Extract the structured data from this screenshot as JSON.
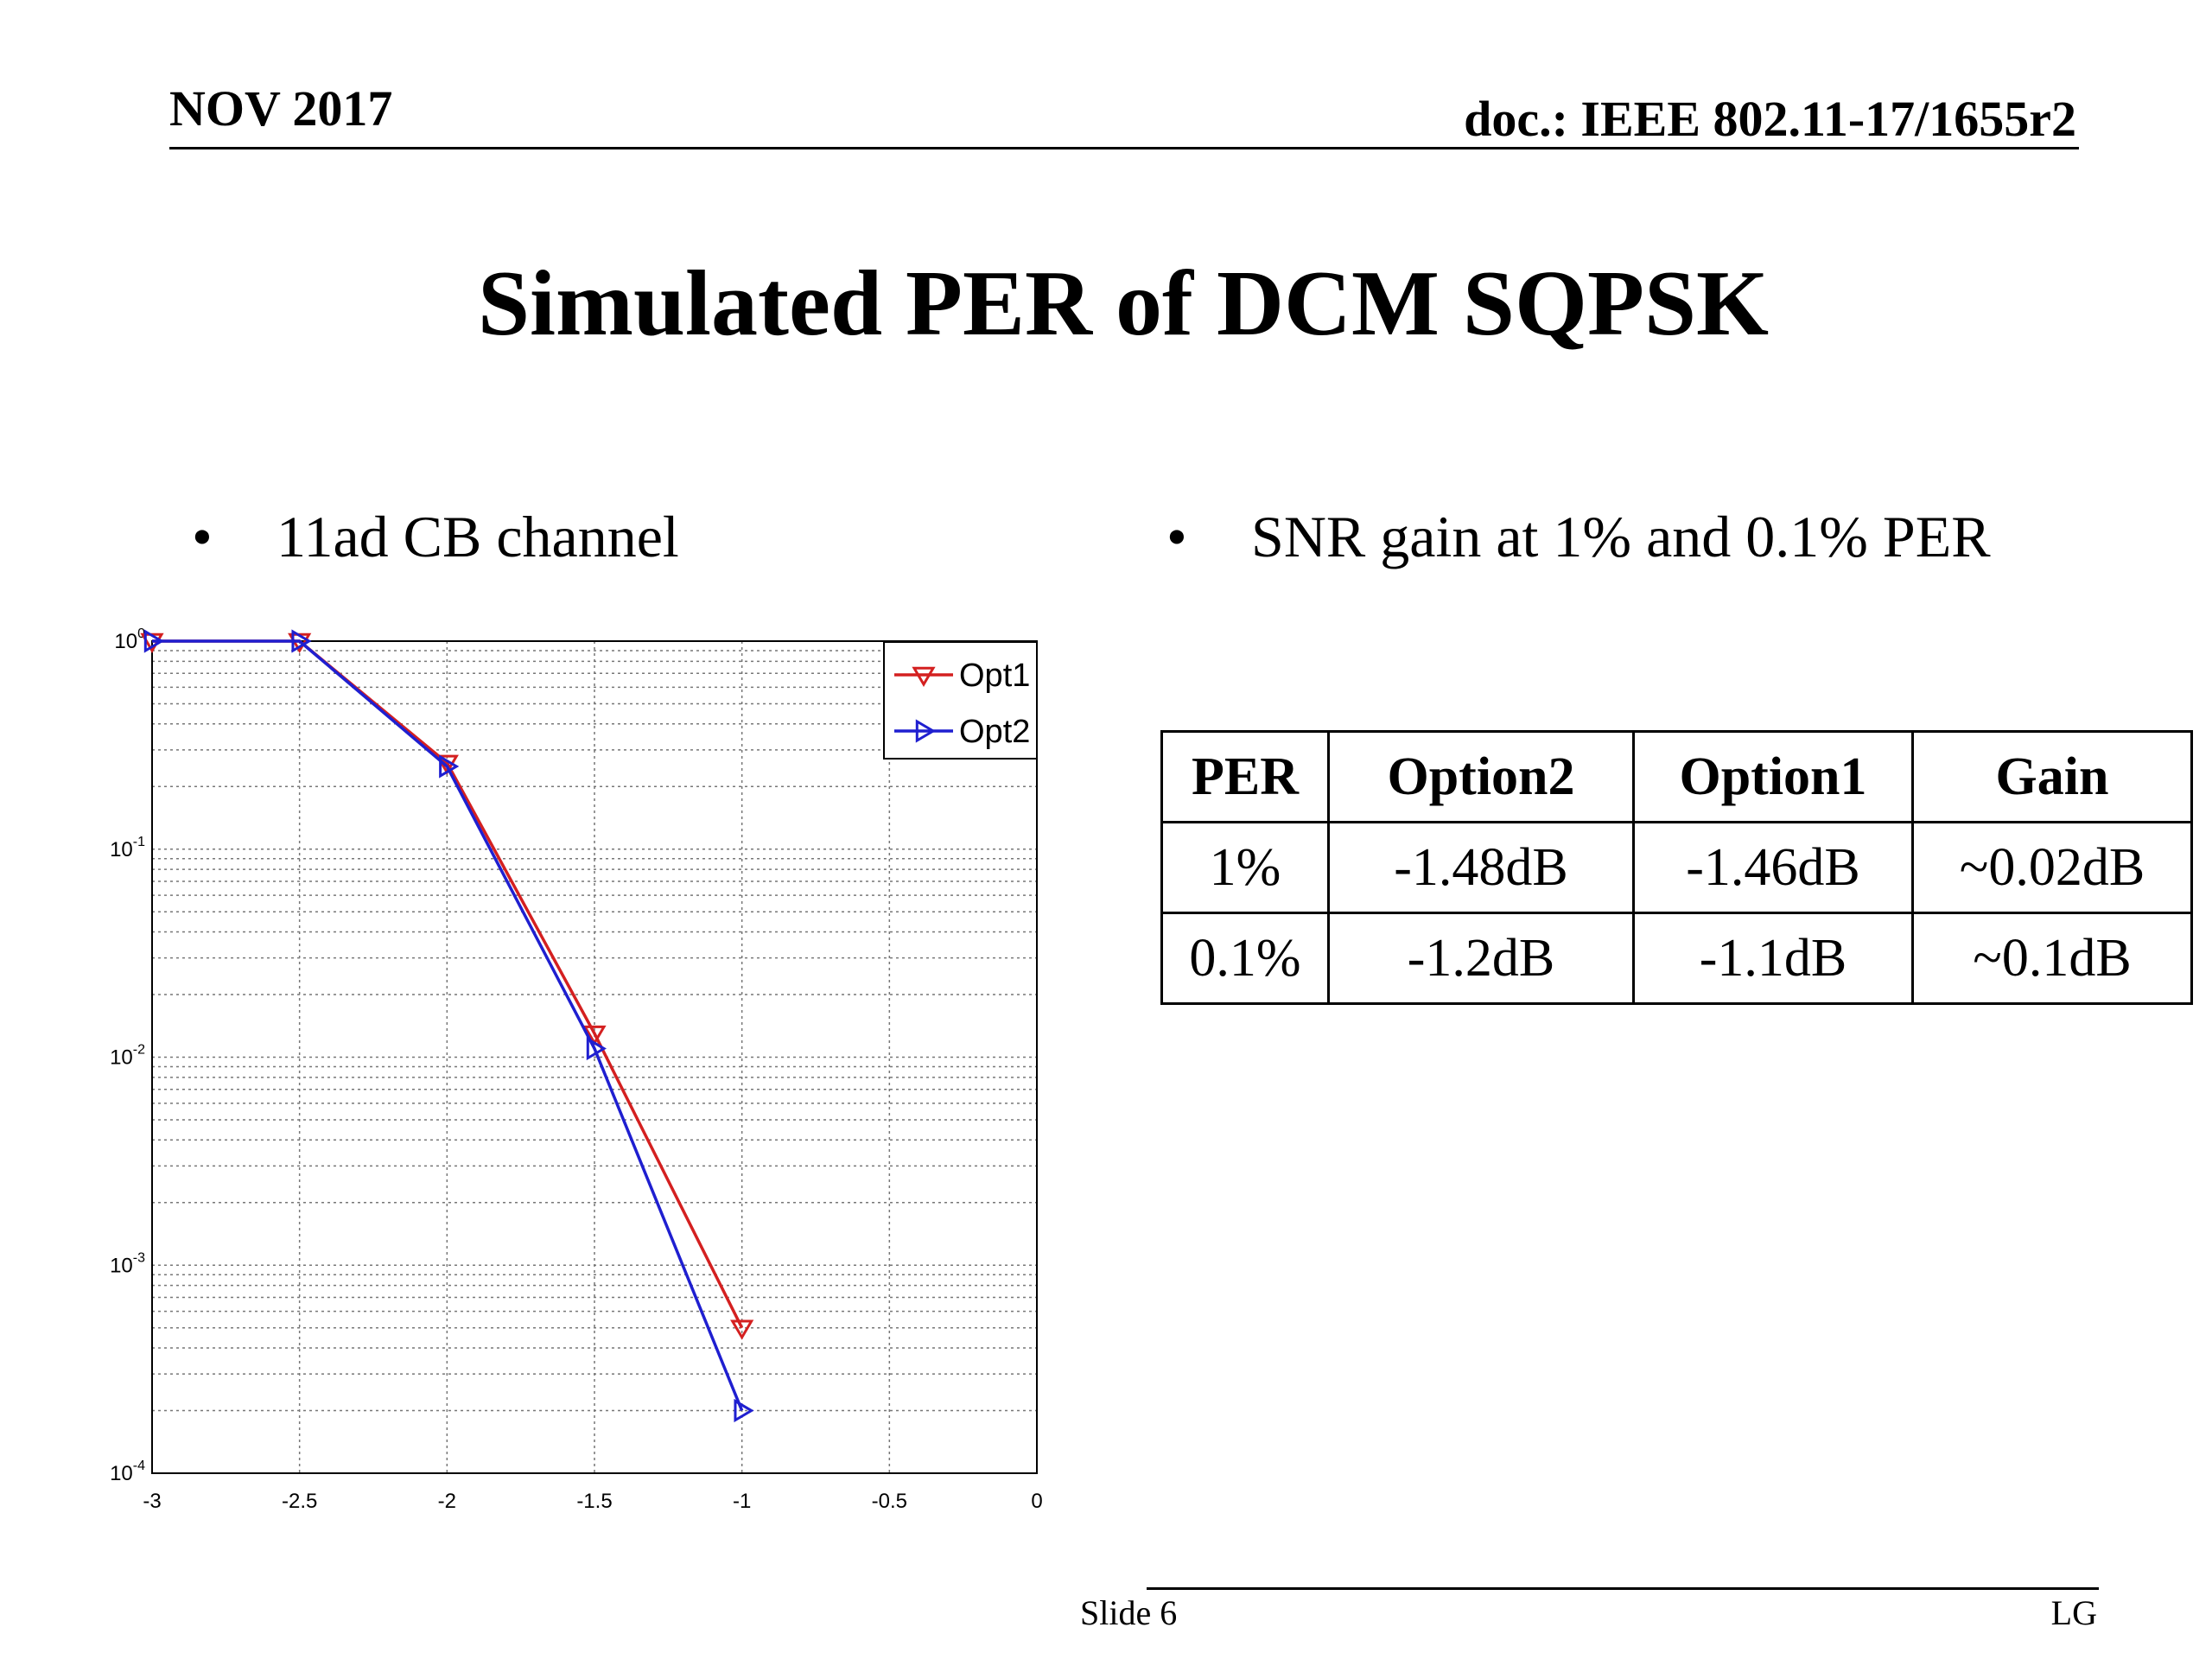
{
  "header": {
    "date": "NOV 2017",
    "doc": "doc.: IEEE 802.11-17/1655r2"
  },
  "title": "Simulated PER of DCM SQPSK",
  "bullets": {
    "left": "11ad CB channel",
    "right": "SNR gain at 1% and 0.1% PER",
    "marker": "•"
  },
  "chart_data": {
    "type": "line",
    "title": "",
    "xlabel": "",
    "ylabel": "",
    "xlim": [
      -3,
      0
    ],
    "ylim": [
      0.0001,
      1
    ],
    "yscale": "log",
    "grid": true,
    "legend_position": "top-right",
    "x_ticks": [
      "-3",
      "-2.5",
      "-2",
      "-1.5",
      "-1",
      "-0.5",
      "0"
    ],
    "y_ticks": [
      {
        "base": "10",
        "exp": "0"
      },
      {
        "base": "10",
        "exp": "-1"
      },
      {
        "base": "10",
        "exp": "-2"
      },
      {
        "base": "10",
        "exp": "-3"
      },
      {
        "base": "10",
        "exp": "-4"
      }
    ],
    "series": [
      {
        "name": "Opt1",
        "color": "#d42020",
        "marker": "triangle-down",
        "x": [
          -3,
          -2.5,
          -2,
          -1.5,
          -1
        ],
        "y": [
          1,
          1,
          0.26,
          0.013,
          0.0005
        ]
      },
      {
        "name": "Opt2",
        "color": "#1f1fd0",
        "marker": "triangle-right",
        "x": [
          -3,
          -2.5,
          -2,
          -1.5,
          -1
        ],
        "y": [
          1,
          1,
          0.25,
          0.011,
          0.0002
        ]
      }
    ]
  },
  "table": {
    "headers": [
      "PER",
      "Option2",
      "Option1",
      "Gain"
    ],
    "rows": [
      [
        "1%",
        "-1.48dB",
        "-1.46dB",
        "~0.02dB"
      ],
      [
        "0.1%",
        "-1.2dB",
        "-1.1dB",
        "~0.1dB"
      ]
    ]
  },
  "footer": {
    "slide": "Slide 6",
    "company": "LG"
  }
}
